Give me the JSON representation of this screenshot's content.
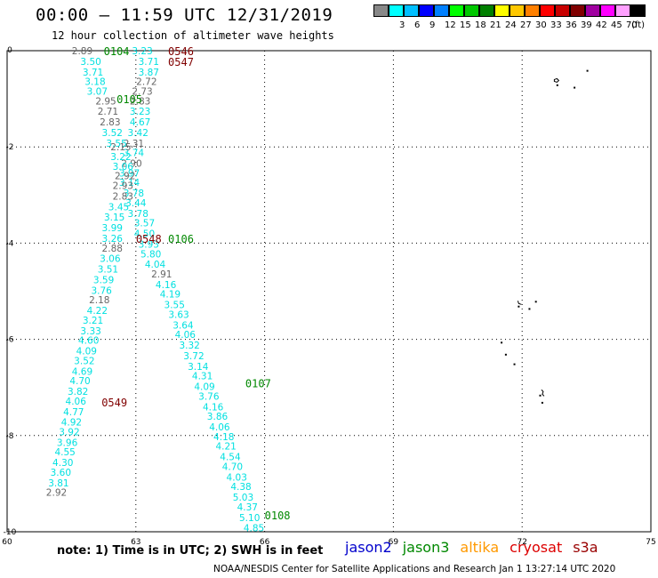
{
  "header": {
    "title": "00:00 – 11:59 UTC 12/31/2019",
    "subtitle": "12 hour collection of altimeter wave heights"
  },
  "legend": {
    "unit": "(ft)",
    "items": [
      {
        "color": "#888888",
        "label": ""
      },
      {
        "color": "#00ffff",
        "label": "3"
      },
      {
        "color": "#00bfff",
        "label": "6"
      },
      {
        "color": "#0000ff",
        "label": "9"
      },
      {
        "color": "#0080ff",
        "label": "12"
      },
      {
        "color": "#00ff00",
        "label": "15"
      },
      {
        "color": "#00c800",
        "label": "18"
      },
      {
        "color": "#008000",
        "label": "21"
      },
      {
        "color": "#ffff00",
        "label": "24"
      },
      {
        "color": "#ffc800",
        "label": "27"
      },
      {
        "color": "#ff8000",
        "label": "30"
      },
      {
        "color": "#ff0000",
        "label": "33"
      },
      {
        "color": "#c80000",
        "label": "36"
      },
      {
        "color": "#800000",
        "label": "39"
      },
      {
        "color": "#a000a0",
        "label": "42"
      },
      {
        "color": "#ff00ff",
        "label": "45"
      },
      {
        "color": "#ffa0ff",
        "label": "70"
      },
      {
        "color": "#000000",
        "label": ""
      }
    ]
  },
  "axes": {
    "lon_ticks": [
      "60",
      "63",
      "66",
      "69",
      "72",
      "75"
    ],
    "lon_values": [
      60,
      63,
      66,
      69,
      72,
      75
    ],
    "lat_ticks": [
      "0",
      "-2",
      "-4",
      "-6",
      "-8",
      "-10"
    ],
    "lat_values": [
      0,
      -2,
      -4,
      -6,
      -8,
      -10
    ],
    "lon_range": [
      60,
      75
    ],
    "lat_range": [
      -10,
      0
    ]
  },
  "colors": {
    "cyan": "#00e0e0",
    "gray": "#666666",
    "green": "#008800",
    "maroon": "#800000",
    "land": "#000000"
  },
  "times": [
    {
      "label": "0104",
      "lon": 62.55,
      "lat": 0.0,
      "color": "green"
    },
    {
      "label": "0105",
      "lon": 62.85,
      "lat": -1.0,
      "color": "green"
    },
    {
      "label": "0106",
      "lon": 64.05,
      "lat": -3.9,
      "color": "green"
    },
    {
      "label": "0107",
      "lon": 65.85,
      "lat": -6.9,
      "color": "green"
    },
    {
      "label": "0108",
      "lon": 66.3,
      "lat": -9.65,
      "color": "green"
    },
    {
      "label": "0546",
      "lon": 64.05,
      "lat": 0.0,
      "color": "maroon"
    },
    {
      "label": "0547",
      "lon": 64.05,
      "lat": -0.22,
      "color": "maroon"
    },
    {
      "label": "0548",
      "lon": 63.3,
      "lat": -3.9,
      "color": "maroon"
    },
    {
      "label": "0549",
      "lon": 62.5,
      "lat": -7.3,
      "color": "maroon"
    }
  ],
  "track1": [
    {
      "v": "3.23",
      "lon": 63.15,
      "lat": 0.0,
      "c": "cyan"
    },
    {
      "v": "3.71",
      "lon": 63.3,
      "lat": -0.22,
      "c": "cyan"
    },
    {
      "v": "3.87",
      "lon": 63.3,
      "lat": -0.44,
      "c": "cyan"
    },
    {
      "v": "2.72",
      "lon": 63.25,
      "lat": -0.64,
      "c": "gray"
    },
    {
      "v": "2.73",
      "lon": 63.15,
      "lat": -0.84,
      "c": "gray"
    },
    {
      "v": "2.83",
      "lon": 63.1,
      "lat": -1.04,
      "c": "gray"
    },
    {
      "v": "3.23",
      "lon": 63.1,
      "lat": -1.26,
      "c": "cyan"
    },
    {
      "v": "4.67",
      "lon": 63.1,
      "lat": -1.48,
      "c": "cyan"
    },
    {
      "v": "3.42",
      "lon": 63.05,
      "lat": -1.7,
      "c": "cyan"
    },
    {
      "v": "2.31",
      "lon": 62.95,
      "lat": -1.92,
      "c": "gray"
    },
    {
      "v": "3.74",
      "lon": 62.95,
      "lat": -2.12,
      "c": "cyan"
    },
    {
      "v": "2.90",
      "lon": 62.9,
      "lat": -2.34,
      "c": "gray"
    },
    {
      "v": "3.97",
      "lon": 62.85,
      "lat": -2.54,
      "c": "cyan"
    },
    {
      "v": "3.14",
      "lon": 62.85,
      "lat": -2.74,
      "c": "cyan"
    },
    {
      "v": "3.78",
      "lon": 62.95,
      "lat": -2.96,
      "c": "cyan"
    },
    {
      "v": "3.44",
      "lon": 63.0,
      "lat": -3.16,
      "c": "cyan"
    },
    {
      "v": "3.78",
      "lon": 63.05,
      "lat": -3.38,
      "c": "cyan"
    },
    {
      "v": "3.57",
      "lon": 63.2,
      "lat": -3.58,
      "c": "cyan"
    },
    {
      "v": "4.50",
      "lon": 63.2,
      "lat": -3.8,
      "c": "cyan"
    },
    {
      "v": "3.93",
      "lon": 63.3,
      "lat": -4.02,
      "c": "cyan"
    },
    {
      "v": "5.80",
      "lon": 63.35,
      "lat": -4.22,
      "c": "cyan"
    },
    {
      "v": "4.04",
      "lon": 63.45,
      "lat": -4.44,
      "c": "cyan"
    },
    {
      "v": "2.91",
      "lon": 63.6,
      "lat": -4.64,
      "c": "gray"
    },
    {
      "v": "4.16",
      "lon": 63.7,
      "lat": -4.86,
      "c": "cyan"
    },
    {
      "v": "4.19",
      "lon": 63.8,
      "lat": -5.06,
      "c": "cyan"
    },
    {
      "v": "3.55",
      "lon": 63.9,
      "lat": -5.28,
      "c": "cyan"
    },
    {
      "v": "3.63",
      "lon": 64.0,
      "lat": -5.48,
      "c": "cyan"
    },
    {
      "v": "3.64",
      "lon": 64.1,
      "lat": -5.7,
      "c": "cyan"
    },
    {
      "v": "4.06",
      "lon": 64.15,
      "lat": -5.9,
      "c": "cyan"
    },
    {
      "v": "3.32",
      "lon": 64.25,
      "lat": -6.12,
      "c": "cyan"
    },
    {
      "v": "3.72",
      "lon": 64.35,
      "lat": -6.34,
      "c": "cyan"
    },
    {
      "v": "3.14",
      "lon": 64.45,
      "lat": -6.56,
      "c": "cyan"
    },
    {
      "v": "4.31",
      "lon": 64.55,
      "lat": -6.76,
      "c": "cyan"
    },
    {
      "v": "4.09",
      "lon": 64.6,
      "lat": -6.98,
      "c": "cyan"
    },
    {
      "v": "3.76",
      "lon": 64.7,
      "lat": -7.18,
      "c": "cyan"
    },
    {
      "v": "4.16",
      "lon": 64.8,
      "lat": -7.4,
      "c": "cyan"
    },
    {
      "v": "3.86",
      "lon": 64.9,
      "lat": -7.6,
      "c": "cyan"
    },
    {
      "v": "4.06",
      "lon": 64.95,
      "lat": -7.82,
      "c": "cyan"
    },
    {
      "v": "4.18",
      "lon": 65.05,
      "lat": -8.02,
      "c": "cyan"
    },
    {
      "v": "4.21",
      "lon": 65.1,
      "lat": -8.22,
      "c": "cyan"
    },
    {
      "v": "4.54",
      "lon": 65.2,
      "lat": -8.44,
      "c": "cyan"
    },
    {
      "v": "4.70",
      "lon": 65.25,
      "lat": -8.64,
      "c": "cyan"
    },
    {
      "v": "4.03",
      "lon": 65.35,
      "lat": -8.86,
      "c": "cyan"
    },
    {
      "v": "4.38",
      "lon": 65.45,
      "lat": -9.06,
      "c": "cyan"
    },
    {
      "v": "5.03",
      "lon": 65.5,
      "lat": -9.28,
      "c": "cyan"
    },
    {
      "v": "4.37",
      "lon": 65.6,
      "lat": -9.48,
      "c": "cyan"
    },
    {
      "v": "5.10",
      "lon": 65.65,
      "lat": -9.7,
      "c": "cyan"
    },
    {
      "v": "4.85",
      "lon": 65.75,
      "lat": -9.92,
      "c": "cyan"
    }
  ],
  "track2": [
    {
      "v": "2.89",
      "lon": 61.75,
      "lat": 0.0,
      "c": "gray"
    },
    {
      "v": "3.50",
      "lon": 61.95,
      "lat": -0.22,
      "c": "cyan"
    },
    {
      "v": "3.71",
      "lon": 62.0,
      "lat": -0.44,
      "c": "cyan"
    },
    {
      "v": "3.18",
      "lon": 62.05,
      "lat": -0.64,
      "c": "cyan"
    },
    {
      "v": "3.07",
      "lon": 62.1,
      "lat": -0.84,
      "c": "cyan"
    },
    {
      "v": "2.95",
      "lon": 62.3,
      "lat": -1.04,
      "c": "gray"
    },
    {
      "v": "2.71",
      "lon": 62.35,
      "lat": -1.26,
      "c": "gray"
    },
    {
      "v": "2.83",
      "lon": 62.4,
      "lat": -1.48,
      "c": "gray"
    },
    {
      "v": "3.52",
      "lon": 62.45,
      "lat": -1.7,
      "c": "cyan"
    },
    {
      "v": "3.55",
      "lon": 62.55,
      "lat": -1.92,
      "c": "cyan"
    },
    {
      "v": "2.15",
      "lon": 62.65,
      "lat": -2.0,
      "c": "gray"
    },
    {
      "v": "3.22",
      "lon": 62.65,
      "lat": -2.2,
      "c": "cyan"
    },
    {
      "v": "3.06",
      "lon": 62.7,
      "lat": -2.4,
      "c": "cyan"
    },
    {
      "v": "2.92",
      "lon": 62.75,
      "lat": -2.6,
      "c": "gray"
    },
    {
      "v": "2.93",
      "lon": 62.7,
      "lat": -2.8,
      "c": "gray"
    },
    {
      "v": "2.83",
      "lon": 62.7,
      "lat": -3.02,
      "c": "gray"
    },
    {
      "v": "3.45",
      "lon": 62.6,
      "lat": -3.24,
      "c": "cyan"
    },
    {
      "v": "3.15",
      "lon": 62.5,
      "lat": -3.46,
      "c": "cyan"
    },
    {
      "v": "3.99",
      "lon": 62.45,
      "lat": -3.68,
      "c": "cyan"
    },
    {
      "v": "3.26",
      "lon": 62.45,
      "lat": -3.9,
      "c": "cyan"
    },
    {
      "v": "2.88",
      "lon": 62.45,
      "lat": -4.1,
      "c": "gray"
    },
    {
      "v": "3.06",
      "lon": 62.4,
      "lat": -4.32,
      "c": "cyan"
    },
    {
      "v": "3.51",
      "lon": 62.35,
      "lat": -4.54,
      "c": "cyan"
    },
    {
      "v": "3.59",
      "lon": 62.25,
      "lat": -4.76,
      "c": "cyan"
    },
    {
      "v": "3.76",
      "lon": 62.2,
      "lat": -4.98,
      "c": "cyan"
    },
    {
      "v": "2.18",
      "lon": 62.15,
      "lat": -5.18,
      "c": "gray"
    },
    {
      "v": "4.22",
      "lon": 62.1,
      "lat": -5.4,
      "c": "cyan"
    },
    {
      "v": "3.21",
      "lon": 62.0,
      "lat": -5.6,
      "c": "cyan"
    },
    {
      "v": "3.33",
      "lon": 61.95,
      "lat": -5.82,
      "c": "cyan"
    },
    {
      "v": "4.60",
      "lon": 61.9,
      "lat": -6.02,
      "c": "cyan"
    },
    {
      "v": "4.09",
      "lon": 61.85,
      "lat": -6.24,
      "c": "cyan"
    },
    {
      "v": "3.52",
      "lon": 61.8,
      "lat": -6.44,
      "c": "cyan"
    },
    {
      "v": "4.69",
      "lon": 61.75,
      "lat": -6.66,
      "c": "cyan"
    },
    {
      "v": "4.70",
      "lon": 61.7,
      "lat": -6.86,
      "c": "cyan"
    },
    {
      "v": "3.82",
      "lon": 61.65,
      "lat": -7.08,
      "c": "cyan"
    },
    {
      "v": "4.06",
      "lon": 61.6,
      "lat": -7.28,
      "c": "cyan"
    },
    {
      "v": "4.77",
      "lon": 61.55,
      "lat": -7.5,
      "c": "cyan"
    },
    {
      "v": "4.92",
      "lon": 61.5,
      "lat": -7.72,
      "c": "cyan"
    },
    {
      "v": "3.92",
      "lon": 61.45,
      "lat": -7.92,
      "c": "cyan"
    },
    {
      "v": "3.96",
      "lon": 61.4,
      "lat": -8.14,
      "c": "cyan"
    },
    {
      "v": "4.55",
      "lon": 61.35,
      "lat": -8.34,
      "c": "cyan"
    },
    {
      "v": "4.30",
      "lon": 61.3,
      "lat": -8.56,
      "c": "cyan"
    },
    {
      "v": "3.60",
      "lon": 61.25,
      "lat": -8.76,
      "c": "cyan"
    },
    {
      "v": "3.81",
      "lon": 61.2,
      "lat": -8.98,
      "c": "cyan"
    },
    {
      "v": "2.92",
      "lon": 61.15,
      "lat": -9.18,
      "c": "gray"
    }
  ],
  "note": {
    "text": "note: 1) Time is in UTC; 2) SWH is in feet"
  },
  "satellites": [
    {
      "name": "jason2",
      "color": "#0000cc"
    },
    {
      "name": "jason3",
      "color": "#008800"
    },
    {
      "name": "altika",
      "color": "#ff9900"
    },
    {
      "name": "cryosat",
      "color": "#dd0000"
    },
    {
      "name": "s3a",
      "color": "#990000"
    }
  ],
  "credit": {
    "text": "NOAA/NESDIS Center for Satellite Applications and Research   Jan  1 13:27:14 UTC 2020"
  }
}
